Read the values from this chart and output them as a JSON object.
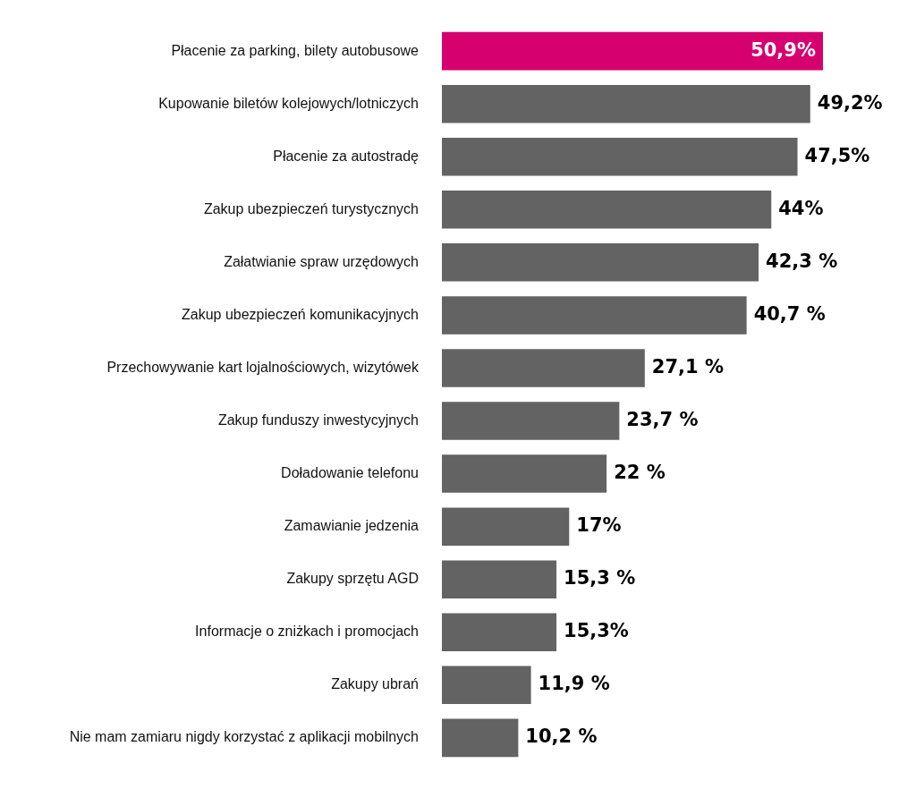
{
  "chart_data": {
    "type": "bar",
    "orientation": "horizontal",
    "categories": [
      "Płacenie za parking, bilety autobusowe",
      "Kupowanie biletów kolejowych/lotniczych",
      "Płacenie za autostradę",
      "Zakup ubezpieczeń turystycznych",
      "Załatwianie spraw urzędowych",
      "Zakup ubezpieczeń komunikacyjnych",
      "Przechowywanie kart lojalnościowych, wizytówek",
      "Zakup funduszy inwestycyjnych",
      "Doładowanie telefonu",
      "Zamawianie jedzenia",
      "Zakupy sprzętu AGD",
      "Informacje o zniżkach i promocjach",
      "Zakupy ubrań",
      "Nie mam zamiaru nigdy korzystać z aplikacji mobilnych"
    ],
    "values": [
      50.9,
      49.2,
      47.5,
      44,
      42.3,
      40.7,
      27.1,
      23.7,
      22,
      17,
      15.3,
      15.3,
      11.9,
      10.2
    ],
    "colors": [
      "#d6006f",
      "#636363",
      "#636363",
      "#636363",
      "#636363",
      "#636363",
      "#636363",
      "#636363",
      "#636363",
      "#636363",
      "#636363",
      "#636363",
      "#636363",
      "#636363"
    ],
    "value_labels": [
      "50,9%",
      "49,2%",
      "47,5%",
      "44%",
      "42,3 %",
      "40,7 %",
      "27,1 %",
      "23,7 %",
      "22 %",
      "17%",
      "15,3 %",
      "15,3%",
      "11,9 %",
      "10,2 %"
    ]
  }
}
